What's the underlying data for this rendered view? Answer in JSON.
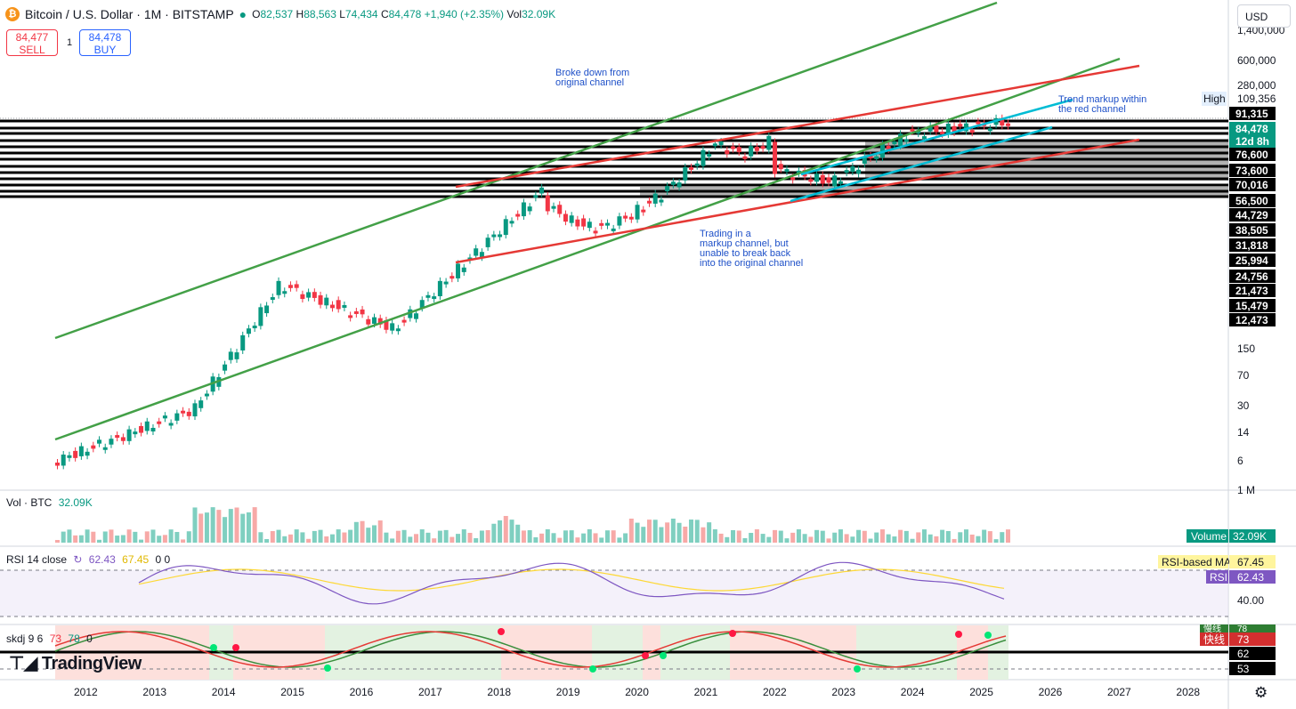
{
  "header": {
    "coin_symbol": "₿",
    "title": "Bitcoin / U.S. Dollar · 1M · BITSTAMP",
    "ohlc": {
      "O": "82,537",
      "H": "88,563",
      "L": "74,434",
      "C": "84,478",
      "change": "+1,940 (+2.35%)",
      "vol": "32.09K"
    },
    "sell": {
      "price": "84,477",
      "label": "SELL"
    },
    "spread": "1",
    "buy": {
      "price": "84,478",
      "label": "BUY"
    },
    "currency": "USD"
  },
  "annotations": {
    "broke_down": "Broke down from\noriginal channel",
    "trend_markup": "Trend markup within\nthe red channel",
    "trading_markup": "Trading in a\nmarkup channel, but\nunable to break back\ninto the original channel"
  },
  "price_axis": {
    "top": [
      "1,400,000",
      "600,000",
      "280,000"
    ],
    "high_label": "High",
    "high_value": "109,356",
    "boxed": [
      {
        "text": "91,315",
        "color": "#000000"
      },
      {
        "text": "84,478",
        "color": "#089981"
      },
      {
        "text": "12d 8h",
        "color": "#089981"
      },
      {
        "text": "76,600",
        "color": "#000000"
      },
      {
        "text": "73,600",
        "color": "#000000"
      },
      {
        "text": "70,016",
        "color": "#000000"
      },
      {
        "text": "56,500",
        "color": "#000000"
      },
      {
        "text": "44,729",
        "color": "#000000"
      },
      {
        "text": "38,505",
        "color": "#000000"
      },
      {
        "text": "31,818",
        "color": "#000000"
      },
      {
        "text": "25,994",
        "color": "#000000"
      },
      {
        "text": "24,756",
        "color": "#000000"
      },
      {
        "text": "21,473",
        "color": "#000000"
      },
      {
        "text": "15,479",
        "color": "#000000"
      },
      {
        "text": "12,473",
        "color": "#000000"
      }
    ],
    "plain": [
      "150",
      "70",
      "30",
      "14",
      "6",
      "1 M"
    ]
  },
  "volume_pane": {
    "label": "Vol · BTC",
    "value": "32.09K",
    "tag_label": "Volume",
    "tag_value": "32.09K"
  },
  "rsi_pane": {
    "label": "RSI 14 close",
    "rsi": "62.43",
    "ma": "67.45",
    "extra": "0 0",
    "ma_tag": "RSI-based MA",
    "rsi_tag": "RSI",
    "level_40": "40.00"
  },
  "skdj_pane": {
    "label": "skdj 9 6",
    "v1": "73",
    "v2": "78",
    "v3": "0",
    "slow_tag": "慢线",
    "slow_value": "78",
    "fast_tag": "快线",
    "fast_value": "73",
    "axis": [
      "62",
      "53"
    ]
  },
  "time_axis": [
    "2012",
    "2013",
    "2014",
    "2015",
    "2016",
    "2017",
    "2018",
    "2019",
    "2020",
    "2021",
    "2022",
    "2023",
    "2024",
    "2025",
    "2026",
    "2027",
    "2028"
  ],
  "logo": "TradingView",
  "colors": {
    "up": "#089981",
    "down": "#f23645",
    "green_channel": "#43a047",
    "red_channel": "#e53935",
    "cyan_channel": "#00bcd4",
    "rsi": "#7e57c2",
    "rsi_ma": "#fdd835"
  }
}
